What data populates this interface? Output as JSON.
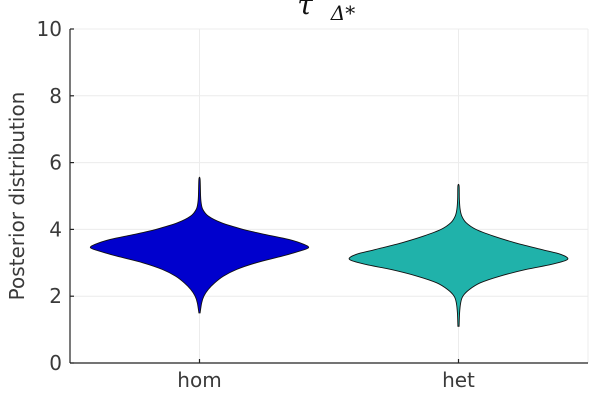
{
  "chart_data": {
    "type": "violin",
    "title": "τ",
    "title_subscript": "Δ*",
    "ylabel": "Posterior distribution",
    "xlabel": "",
    "ylim": [
      0,
      10
    ],
    "yticks": [
      0,
      2,
      4,
      6,
      8,
      10
    ],
    "grid": true,
    "categories": [
      "hom",
      "het"
    ],
    "series": [
      {
        "category": "hom",
        "color": "#0000cd",
        "min": 1.5,
        "max": 5.5,
        "mode": 3.45,
        "density_profile": [
          [
            1.5,
            0.0
          ],
          [
            1.8,
            0.02
          ],
          [
            2.0,
            0.04
          ],
          [
            2.2,
            0.08
          ],
          [
            2.4,
            0.14
          ],
          [
            2.6,
            0.22
          ],
          [
            2.8,
            0.34
          ],
          [
            3.0,
            0.52
          ],
          [
            3.2,
            0.76
          ],
          [
            3.35,
            0.92
          ],
          [
            3.45,
            1.0
          ],
          [
            3.55,
            0.96
          ],
          [
            3.7,
            0.82
          ],
          [
            3.85,
            0.6
          ],
          [
            4.0,
            0.4
          ],
          [
            4.2,
            0.2
          ],
          [
            4.4,
            0.08
          ],
          [
            4.6,
            0.03
          ],
          [
            4.8,
            0.015
          ],
          [
            5.0,
            0.01
          ],
          [
            5.5,
            0.0
          ]
        ]
      },
      {
        "category": "het",
        "color": "#20b2aa",
        "min": 1.1,
        "max": 5.3,
        "mode": 3.1,
        "density_profile": [
          [
            1.1,
            0.0
          ],
          [
            1.5,
            0.01
          ],
          [
            1.8,
            0.02
          ],
          [
            2.0,
            0.04
          ],
          [
            2.2,
            0.1
          ],
          [
            2.4,
            0.2
          ],
          [
            2.6,
            0.38
          ],
          [
            2.8,
            0.62
          ],
          [
            2.95,
            0.85
          ],
          [
            3.1,
            1.0
          ],
          [
            3.25,
            0.94
          ],
          [
            3.4,
            0.76
          ],
          [
            3.6,
            0.52
          ],
          [
            3.8,
            0.32
          ],
          [
            4.0,
            0.16
          ],
          [
            4.2,
            0.07
          ],
          [
            4.4,
            0.03
          ],
          [
            4.6,
            0.015
          ],
          [
            4.9,
            0.008
          ],
          [
            5.3,
            0.0
          ]
        ]
      }
    ]
  }
}
